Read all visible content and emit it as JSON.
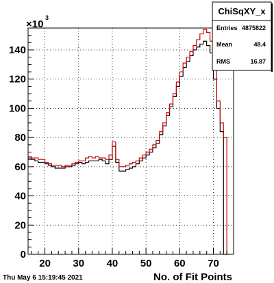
{
  "date_stamp": "Thu May  6 15:19:45 2021",
  "stats_box": {
    "title": "ChiSqXY_x",
    "rows": [
      {
        "label": "Entries",
        "value": "4875822"
      },
      {
        "label": "Mean",
        "value": "48.4"
      },
      {
        "label": "RMS",
        "value": "16.87"
      }
    ]
  },
  "chart_data": {
    "type": "line",
    "title": "",
    "xlabel": "No. of Fit Points",
    "ylabel": "",
    "y_multiplier_label": "×10",
    "y_multiplier_exponent": "3",
    "xlim": [
      15,
      76
    ],
    "ylim": [
      0,
      155
    ],
    "x_ticks": [
      20,
      30,
      40,
      50,
      60,
      70
    ],
    "y_ticks": [
      0,
      20,
      40,
      60,
      80,
      100,
      120,
      140
    ],
    "grid": true,
    "bin_edges": [
      15,
      16,
      17,
      18,
      19,
      20,
      21,
      22,
      23,
      24,
      25,
      26,
      27,
      28,
      29,
      30,
      31,
      32,
      33,
      34,
      35,
      36,
      37,
      38,
      39,
      40,
      41,
      42,
      43,
      44,
      45,
      46,
      47,
      48,
      49,
      50,
      51,
      52,
      53,
      54,
      55,
      56,
      57,
      58,
      59,
      60,
      61,
      62,
      63,
      64,
      65,
      66,
      67,
      68,
      69,
      70,
      71,
      72,
      73,
      74
    ],
    "series": [
      {
        "color": "#000000",
        "values": [
          66,
          65,
          64,
          63,
          63,
          62,
          61,
          60,
          59,
          59,
          59,
          60,
          60,
          61,
          62,
          63,
          62,
          63,
          64,
          64,
          64,
          65,
          64,
          62,
          65,
          74,
          63,
          57,
          57,
          58,
          59,
          60,
          62,
          64,
          66,
          68,
          70,
          73,
          76,
          82,
          88,
          95,
          101,
          108,
          115,
          122,
          128,
          132,
          136,
          140,
          142,
          144,
          146,
          143,
          138,
          120,
          100,
          84,
          0
        ]
      },
      {
        "color": "#cc0000",
        "values": [
          67,
          66,
          66,
          65,
          65,
          63,
          62,
          61,
          61,
          61,
          60,
          61,
          61,
          62,
          63,
          64,
          64,
          66,
          67,
          66,
          67,
          66,
          66,
          65,
          68,
          77,
          65,
          60,
          60,
          61,
          62,
          63,
          64,
          66,
          68,
          70,
          72,
          75,
          78,
          84,
          90,
          97,
          103,
          110,
          118,
          125,
          131,
          135,
          139,
          143,
          147,
          151,
          154,
          152,
          146,
          128,
          105,
          90,
          80
        ]
      }
    ]
  }
}
